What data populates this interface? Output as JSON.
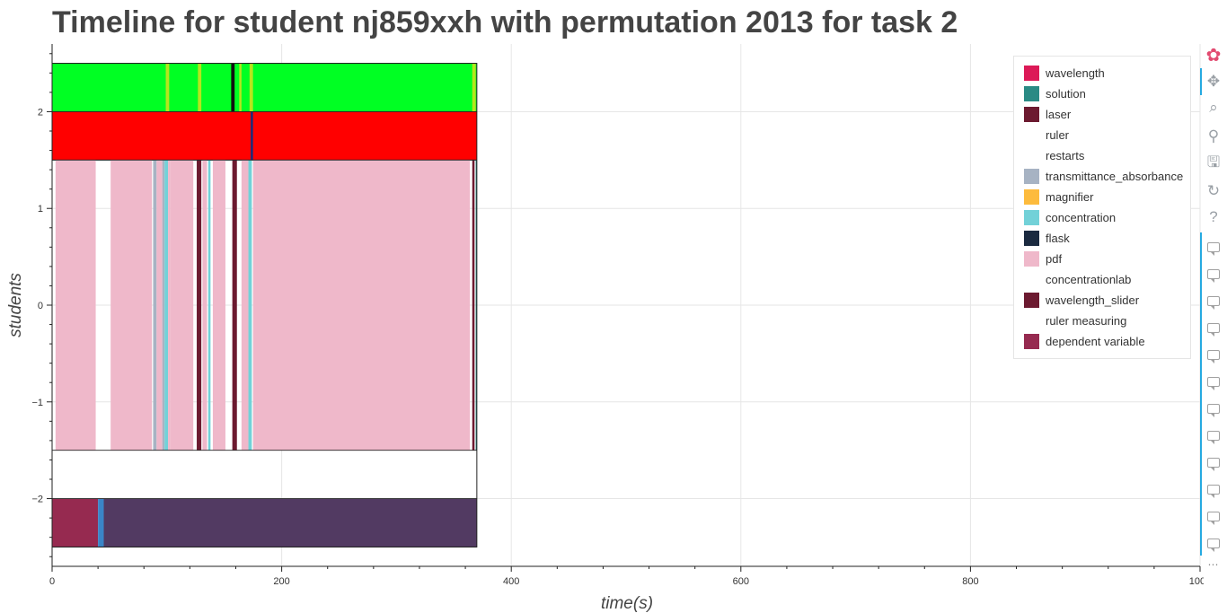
{
  "chart_data": {
    "type": "timeline",
    "title": "Timeline for student nj859xxh with permutation 2013 for task 2",
    "xlabel": "time(s)",
    "ylabel": "students",
    "xlim": [
      0,
      1000
    ],
    "ylim": [
      -2.7,
      2.7
    ],
    "x_ticks": [
      0,
      200,
      400,
      600,
      800,
      1000
    ],
    "y_ticks": [
      -2,
      -1,
      0,
      1,
      2
    ],
    "y_tick_labels": [
      "−2",
      "−1",
      "0",
      "1",
      "2"
    ],
    "grid": true,
    "legend_position": "top-right",
    "outline_box": {
      "x0": 0,
      "x1": 370,
      "y0": -2.5,
      "y1": 2.5
    },
    "rows": [
      {
        "y0": 2.0,
        "y1": 2.5,
        "segments": [
          {
            "x0": 0,
            "x1": 370,
            "color": "#00ff23"
          },
          {
            "x0": 99,
            "x1": 102,
            "color": "#b5e61d"
          },
          {
            "x0": 127,
            "x1": 130,
            "color": "#b5e61d"
          },
          {
            "x0": 156,
            "x1": 159,
            "color": "#111111"
          },
          {
            "x0": 163,
            "x1": 165,
            "color": "#b5e61d"
          },
          {
            "x0": 172,
            "x1": 175,
            "color": "#b5e61d"
          },
          {
            "x0": 366,
            "x1": 369,
            "color": "#b5e61d"
          }
        ]
      },
      {
        "y0": 1.5,
        "y1": 2.0,
        "segments": [
          {
            "x0": 0,
            "x1": 370,
            "color": "#ff0000"
          },
          {
            "x0": 173,
            "x1": 175,
            "color": "#1b2a7a"
          }
        ]
      },
      {
        "y0": -1.5,
        "y1": 1.5,
        "segments": [
          {
            "x0": 3,
            "x1": 38,
            "color": "#efb8ca"
          },
          {
            "x0": 51,
            "x1": 87,
            "color": "#efb8ca"
          },
          {
            "x0": 88,
            "x1": 91,
            "color": "#a7b3c3"
          },
          {
            "x0": 91,
            "x1": 96,
            "color": "#efb8ca"
          },
          {
            "x0": 96,
            "x1": 98,
            "color": "#a7b3c3"
          },
          {
            "x0": 98,
            "x1": 101,
            "color": "#72d1d8"
          },
          {
            "x0": 101,
            "x1": 103,
            "color": "#efb8ca"
          },
          {
            "x0": 103,
            "x1": 123,
            "color": "#efb8ca"
          },
          {
            "x0": 126,
            "x1": 130,
            "color": "#6c1a30"
          },
          {
            "x0": 131,
            "x1": 135,
            "color": "#efb8ca"
          },
          {
            "x0": 136,
            "x1": 138,
            "color": "#72d1d8"
          },
          {
            "x0": 140,
            "x1": 151,
            "color": "#efb8ca"
          },
          {
            "x0": 157,
            "x1": 161,
            "color": "#6c1a30"
          },
          {
            "x0": 165,
            "x1": 171,
            "color": "#efb8ca"
          },
          {
            "x0": 171,
            "x1": 174,
            "color": "#72d1d8"
          },
          {
            "x0": 175,
            "x1": 364,
            "color": "#efb8ca"
          },
          {
            "x0": 366,
            "x1": 368,
            "color": "#6c1a30"
          },
          {
            "x0": 369,
            "x1": 370,
            "color": "#2a8a84"
          }
        ]
      },
      {
        "y0": -2.5,
        "y1": -2.0,
        "segments": [
          {
            "x0": 0,
            "x1": 40,
            "color": "#962a50"
          },
          {
            "x0": 40,
            "x1": 45,
            "color": "#3a85c7"
          },
          {
            "x0": 45,
            "x1": 370,
            "color": "#523a62"
          }
        ]
      }
    ],
    "legend": [
      {
        "label": "wavelength",
        "color": "#dc1957"
      },
      {
        "label": "solution",
        "color": "#2a8a84"
      },
      {
        "label": "laser",
        "color": "#6c1a30"
      },
      {
        "label": "ruler",
        "color": ""
      },
      {
        "label": "restarts",
        "color": ""
      },
      {
        "label": "transmittance_absorbance",
        "color": "#a7b3c3"
      },
      {
        "label": "magnifier",
        "color": "#fdbb3d"
      },
      {
        "label": "concentration",
        "color": "#72d1d8"
      },
      {
        "label": "flask",
        "color": "#1b2a40"
      },
      {
        "label": "pdf",
        "color": "#efb8ca"
      },
      {
        "label": "concentrationlab",
        "color": ""
      },
      {
        "label": "wavelength_slider",
        "color": "#6c1a30"
      },
      {
        "label": "ruler measuring",
        "color": ""
      },
      {
        "label": "dependent variable",
        "color": "#962a50"
      }
    ]
  },
  "toolbar": {
    "tools": [
      {
        "name": "bokeh-logo-icon",
        "glyph": "✿"
      },
      {
        "name": "pan-tool-icon",
        "glyph": "✥"
      },
      {
        "name": "box-zoom-tool-icon",
        "glyph": "⌕"
      },
      {
        "name": "wheel-zoom-tool-icon",
        "glyph": "⚲"
      },
      {
        "name": "save-tool-icon",
        "glyph": "🖫"
      },
      {
        "name": "reset-tool-icon",
        "glyph": "↻"
      },
      {
        "name": "help-tool-icon",
        "glyph": "?"
      }
    ],
    "comment_tool_count": 12
  }
}
